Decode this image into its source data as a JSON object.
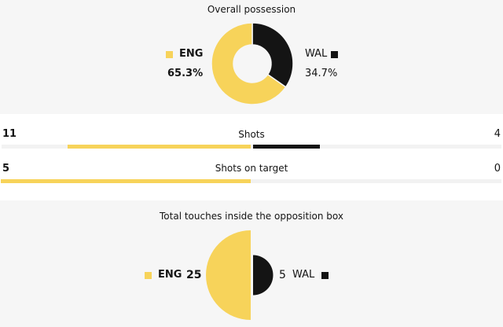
{
  "colors": {
    "eng": "#f7d35a",
    "wal": "#141414",
    "panel": "#f6f6f6",
    "track": "#f2f2f2"
  },
  "chart_data": [
    {
      "type": "pie",
      "variant": "donut",
      "title": "Overall possession",
      "series": [
        {
          "name": "ENG",
          "value": 65.3,
          "label": "65.3%"
        },
        {
          "name": "WAL",
          "value": 34.7,
          "label": "34.7%"
        }
      ]
    },
    {
      "type": "bar",
      "title": "Shots",
      "series": [
        {
          "name": "ENG",
          "value": 11,
          "label": "11"
        },
        {
          "name": "WAL",
          "value": 4,
          "label": "4"
        }
      ]
    },
    {
      "type": "bar",
      "title": "Shots on target",
      "series": [
        {
          "name": "ENG",
          "value": 5,
          "label": "5"
        },
        {
          "name": "WAL",
          "value": 0,
          "label": "0"
        }
      ]
    },
    {
      "type": "pie",
      "variant": "half-circles",
      "title": "Total touches inside the opposition box",
      "series": [
        {
          "name": "ENG",
          "value": 25,
          "label": "25"
        },
        {
          "name": "WAL",
          "value": 5,
          "label": "5"
        }
      ]
    }
  ]
}
